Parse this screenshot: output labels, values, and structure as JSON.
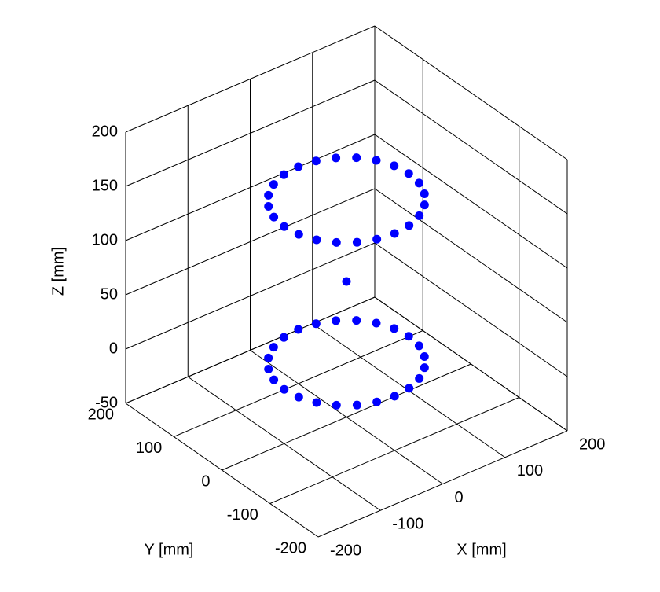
{
  "chart_data": {
    "type": "scatter3d",
    "xlabel": "X [mm]",
    "ylabel": "Y [mm]",
    "zlabel": "Z [mm]",
    "xlim": [
      -200,
      200
    ],
    "ylim": [
      -200,
      200
    ],
    "zlim": [
      -50,
      200
    ],
    "xticks": [
      -200,
      -100,
      0,
      100,
      200
    ],
    "yticks": [
      -200,
      -100,
      0,
      100,
      200
    ],
    "zticks": [
      -50,
      0,
      50,
      100,
      150,
      200
    ],
    "grid": true,
    "color": "#0000ff",
    "x": [
      100,
      96.6,
      86.6,
      70.7,
      50,
      25.9,
      0,
      -25.9,
      -50,
      -70.7,
      -86.6,
      -96.6,
      -100,
      -96.6,
      -86.6,
      -70.7,
      -50,
      -25.9,
      0,
      25.9,
      50,
      70.7,
      86.6,
      96.6,
      100,
      96.6,
      86.6,
      70.7,
      50,
      25.9,
      0,
      -25.9,
      -50,
      -70.7,
      -86.6,
      -96.6,
      -100,
      -96.6,
      -86.6,
      -70.7,
      -50,
      -25.9,
      0,
      25.9,
      50,
      70.7,
      86.6,
      96.6,
      0
    ],
    "y": [
      0,
      25.9,
      50,
      70.7,
      86.6,
      96.6,
      100,
      96.6,
      86.6,
      70.7,
      50,
      25.9,
      0,
      -25.9,
      -50,
      -70.7,
      -86.6,
      -96.6,
      -100,
      -96.6,
      -86.6,
      -70.7,
      -50,
      -25.9,
      0,
      25.9,
      50,
      70.7,
      86.6,
      96.6,
      100,
      96.6,
      86.6,
      70.7,
      50,
      25.9,
      0,
      -25.9,
      -50,
      -70.7,
      -86.6,
      -96.6,
      -100,
      -96.6,
      -86.6,
      -70.7,
      -50,
      -25.9,
      0
    ],
    "z": [
      0,
      0,
      0,
      0,
      0,
      0,
      0,
      0,
      0,
      0,
      0,
      0,
      0,
      0,
      0,
      0,
      0,
      0,
      0,
      0,
      0,
      0,
      0,
      0,
      150,
      150,
      150,
      150,
      150,
      150,
      150,
      150,
      150,
      150,
      150,
      150,
      150,
      150,
      150,
      150,
      150,
      150,
      150,
      150,
      150,
      150,
      150,
      150,
      75
    ]
  }
}
